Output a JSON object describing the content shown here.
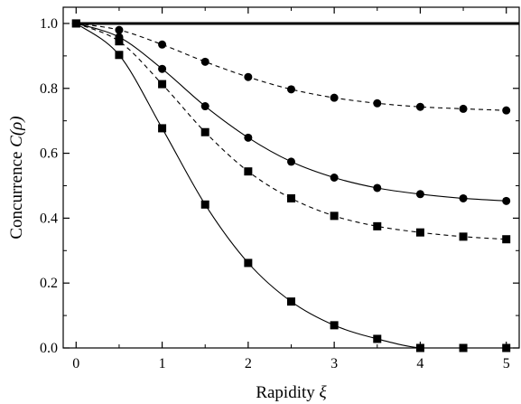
{
  "chart_data": {
    "type": "line",
    "xlabel": {
      "text": "Rapidity ",
      "symbol": "ξ"
    },
    "ylabel": {
      "text": "Concurrence ",
      "symbol": "C(ρ)"
    },
    "xlim": [
      -0.15,
      5.15
    ],
    "ylim": [
      0.0,
      1.05
    ],
    "xticks": [
      0,
      1,
      2,
      3,
      4,
      5
    ],
    "yticks": [
      0.0,
      0.2,
      0.4,
      0.6,
      0.8,
      1.0
    ],
    "xtick_labels": [
      "0",
      "1",
      "2",
      "3",
      "4",
      "5"
    ],
    "ytick_labels": [
      "0.0",
      "0.2",
      "0.4",
      "0.6",
      "0.8",
      "1.0"
    ],
    "minor_xticks": [
      0.5,
      1.5,
      2.5,
      3.5,
      4.5
    ],
    "minor_yticks": [
      0.1,
      0.3,
      0.5,
      0.7,
      0.9
    ],
    "grid": false,
    "legend": "none",
    "colors": {
      "line": "#000000",
      "marker": "#000000",
      "background": "#ffffff"
    },
    "series": [
      {
        "line_style": "solid-thick",
        "marker": "none",
        "x": [
          0,
          5.15
        ],
        "y": [
          1.0,
          1.0
        ]
      },
      {
        "line_style": "dashed",
        "marker": "circle",
        "x": [
          0,
          0.5,
          1,
          1.5,
          2,
          2.5,
          3,
          3.5,
          4,
          4.5,
          5
        ],
        "y": [
          1.0,
          0.98,
          0.935,
          0.882,
          0.835,
          0.797,
          0.771,
          0.754,
          0.743,
          0.737,
          0.732
        ]
      },
      {
        "line_style": "solid",
        "marker": "circle",
        "x": [
          0,
          0.5,
          1,
          1.5,
          2,
          2.5,
          3,
          3.5,
          4,
          4.5,
          5
        ],
        "y": [
          1.0,
          0.958,
          0.86,
          0.745,
          0.648,
          0.574,
          0.525,
          0.493,
          0.474,
          0.461,
          0.453
        ]
      },
      {
        "line_style": "dashed",
        "marker": "square",
        "x": [
          0,
          0.5,
          1,
          1.5,
          2,
          2.5,
          3,
          3.5,
          4,
          4.5,
          5
        ],
        "y": [
          1.0,
          0.945,
          0.813,
          0.665,
          0.544,
          0.461,
          0.407,
          0.375,
          0.356,
          0.343,
          0.335
        ]
      },
      {
        "line_style": "solid",
        "marker": "square",
        "x": [
          0,
          0.5,
          1,
          1.5,
          2,
          2.5,
          3,
          3.5,
          4,
          4.5,
          5
        ],
        "y": [
          1.0,
          0.903,
          0.677,
          0.442,
          0.262,
          0.143,
          0.07,
          0.028,
          0.0,
          0.0,
          0.0
        ]
      }
    ]
  }
}
